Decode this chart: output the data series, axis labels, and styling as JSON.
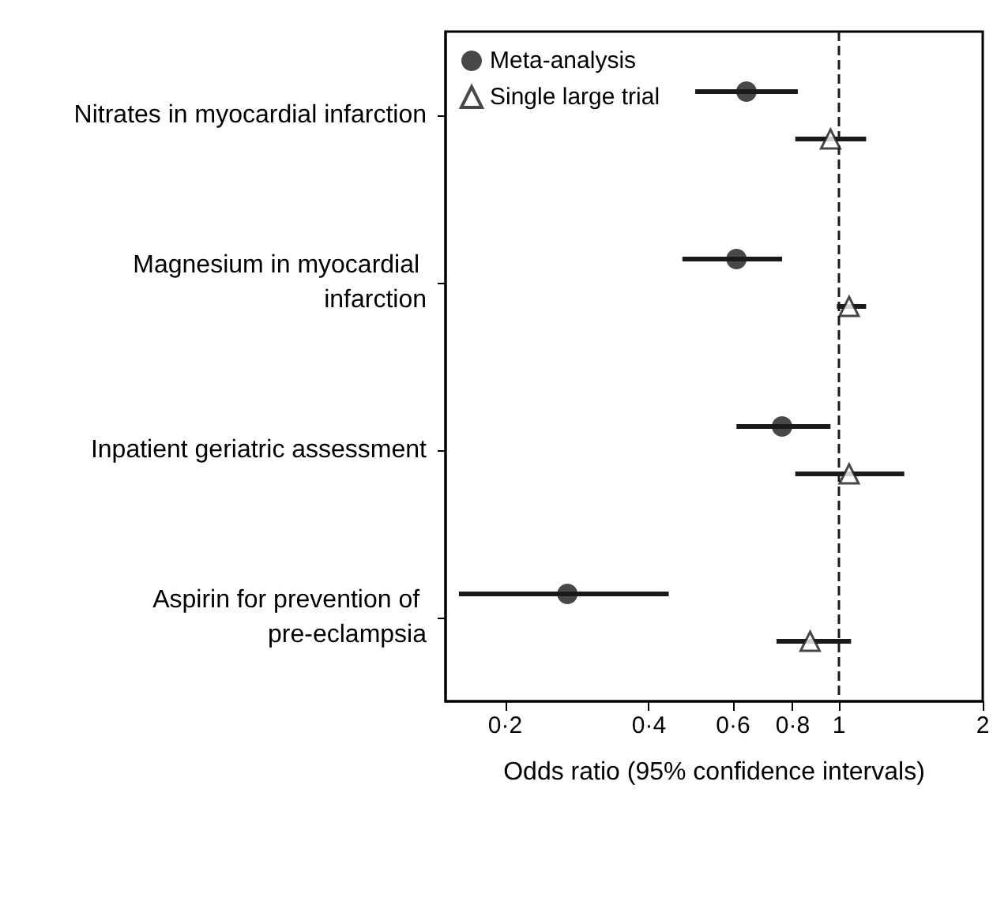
{
  "chart_data": {
    "type": "scatter",
    "orientation": "horizontal",
    "xlabel": "Odds ratio (95% confidence intervals)",
    "categories": [
      "Nitrates in myocardial infarction",
      "Magnesium in myocardial infarction",
      "Inpatient geriatric assessment",
      "Aspirin for prevention of pre-eclampsia"
    ],
    "series": [
      {
        "name": "Meta-analysis",
        "color": "#1a1a1a",
        "marker": "circle",
        "values": [
          0.64,
          0.61,
          0.76,
          0.27
        ],
        "errors": [
          [
            0.5,
            0.82
          ],
          [
            0.47,
            0.76
          ],
          [
            0.61,
            0.96
          ],
          [
            0.16,
            0.44
          ]
        ]
      },
      {
        "name": "Single large trial",
        "color": "#1a1a1a",
        "marker": "triangle",
        "values": [
          0.96,
          1.05,
          1.05,
          0.87
        ],
        "errors": [
          [
            0.81,
            1.14
          ],
          [
            0.99,
            1.14
          ],
          [
            0.81,
            1.37
          ],
          [
            0.74,
            1.06
          ]
        ]
      }
    ],
    "log": "x",
    "xlim": [
      0.15,
      2
    ],
    "xticks": [
      {
        "value": 0.2,
        "label": "0·2"
      },
      {
        "value": 0.4,
        "label": "0·4"
      },
      {
        "value": 0.6,
        "label": "0·6"
      },
      {
        "value": 0.8,
        "label": "0·8"
      },
      1,
      2
    ],
    "ref_lines": [
      {
        "axis": "x",
        "value": 1,
        "line_style": "dashed",
        "color": "#1a1a1a"
      }
    ],
    "grid": false,
    "legend": "top left"
  }
}
